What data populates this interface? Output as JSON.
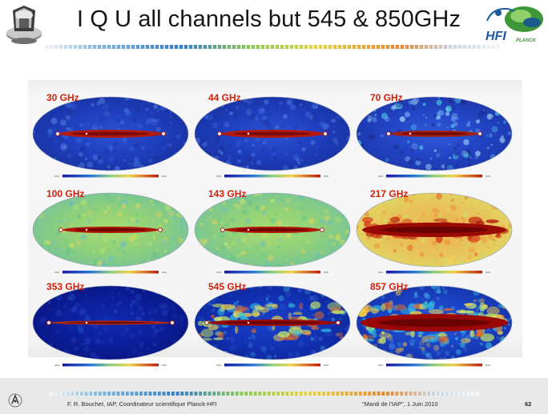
{
  "slide": {
    "title": "I Q U all channels but 545 & 850GHz",
    "hfi_logo_text": "HFI",
    "planck_logo_text": "PLANCK"
  },
  "maps": [
    {
      "label": "30 GHz",
      "color_scheme": "blue-quiet"
    },
    {
      "label": "44 GHz",
      "color_scheme": "blue-quiet"
    },
    {
      "label": "70 GHz",
      "color_scheme": "blue-mottled"
    },
    {
      "label": "100 GHz",
      "color_scheme": "green-yellow"
    },
    {
      "label": "143 GHz",
      "color_scheme": "green-yellow"
    },
    {
      "label": "217 GHz",
      "color_scheme": "orange-red"
    },
    {
      "label": "353 GHz",
      "color_scheme": "blue-faint"
    },
    {
      "label": "545 GHz",
      "color_scheme": "blue-dust"
    },
    {
      "label": "857 GHz",
      "color_scheme": "blue-strong-dust"
    }
  ],
  "footer": {
    "author": "F. R. Bouchet, IAP, Coordinateur scientifique Planck-HFI",
    "event": "\"Mardi de l'IAP\", 1 Juin 2010",
    "page_number": "62"
  },
  "colors": {
    "label_red": "#d21f0b",
    "title_text": "#151515",
    "footer_bg": "#e9e9e9"
  }
}
